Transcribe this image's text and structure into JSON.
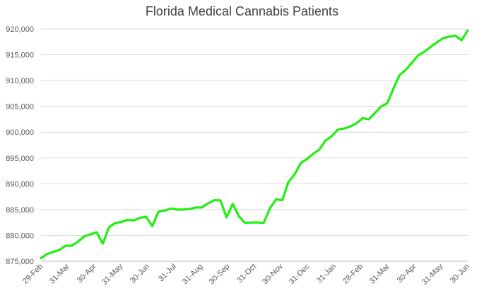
{
  "chart_data": {
    "type": "line",
    "title": "Florida Medical Cannabis Patients",
    "xlabel": "",
    "ylabel": "",
    "ylim": [
      875000,
      920000
    ],
    "y_ticks": [
      875000,
      880000,
      885000,
      890000,
      895000,
      900000,
      905000,
      910000,
      915000,
      920000
    ],
    "y_tick_labels": [
      "875,000",
      "880,000",
      "885,000",
      "890,000",
      "895,000",
      "900,000",
      "905,000",
      "910,000",
      "915,000",
      "920,000"
    ],
    "x_tick_labels": [
      "29-Feb",
      "31-Mar",
      "30-Apr",
      "31-May",
      "30-Jun",
      "31-Jul",
      "31-Aug",
      "30-Sep",
      "31-Oct",
      "30-Nov",
      "31-Dec",
      "31-Jan",
      "28-Feb",
      "31-Mar",
      "30-Apr",
      "31-May",
      "30-Jun"
    ],
    "grid": true,
    "legend": "none",
    "line_color": "#22ee11",
    "series": [
      {
        "values": [
          875600,
          876400,
          876800,
          877200,
          878000,
          878000,
          878800,
          879800,
          880200,
          880600,
          878400,
          881600,
          882400,
          882600,
          883000,
          882900,
          883400,
          883600,
          881800,
          884600,
          884800,
          885200,
          885000,
          885000,
          885100,
          885400,
          885400,
          886200,
          886800,
          886800,
          883500,
          886100,
          883700,
          882400,
          882500,
          882500,
          882400,
          885200,
          887000,
          886800,
          890300,
          891800,
          894000,
          894800,
          895800,
          896600,
          898400,
          899200,
          900500,
          900700,
          901100,
          901700,
          902700,
          902500,
          903700,
          905000,
          905600,
          908500,
          911100,
          912100,
          913500,
          914900,
          915600,
          916500,
          917400,
          918200,
          918500,
          918700,
          917800,
          919700
        ]
      }
    ]
  }
}
